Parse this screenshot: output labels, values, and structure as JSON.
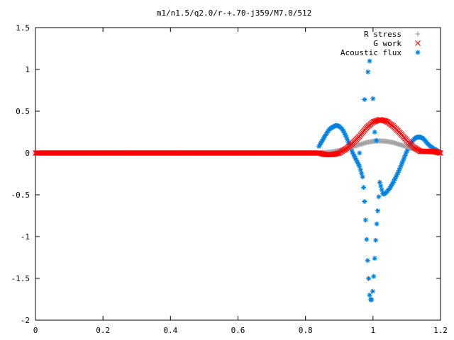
{
  "chart_data": {
    "type": "scatter",
    "title": "m1/n1.5/q2.0/r-+.70-j359/M7.0/512",
    "xlim": [
      0,
      1.2
    ],
    "ylim": [
      -2,
      1.5
    ],
    "x_ticks": [
      0,
      0.2,
      0.4,
      0.6,
      0.8,
      1,
      1.2
    ],
    "x_tick_labels": [
      "0",
      "0.2",
      "0.4",
      "0.6",
      "0.8",
      "1",
      "1.2"
    ],
    "y_ticks": [
      1.5,
      1,
      0.5,
      0,
      -0.5,
      -1,
      -1.5,
      -2
    ],
    "y_tick_labels": [
      "1.5",
      "1",
      "0.5",
      "0",
      "-0.5",
      "-1",
      "-1.5",
      "-2"
    ],
    "legend_position": "top-right",
    "series": [
      {
        "name": "R stress",
        "marker": "+",
        "color": "#a0a0a0",
        "x": [
          0.84,
          0.86,
          0.88,
          0.9,
          0.92,
          0.94,
          0.96,
          0.98,
          1.0,
          1.02,
          1.04,
          1.06,
          1.08,
          1.1,
          1.12,
          1.14,
          1.16,
          1.18,
          1.2
        ],
        "y": [
          0.0,
          0.005,
          0.015,
          0.03,
          0.05,
          0.075,
          0.1,
          0.125,
          0.14,
          0.145,
          0.14,
          0.125,
          0.1,
          0.075,
          0.05,
          0.03,
          0.015,
          0.005,
          0.0
        ]
      },
      {
        "name": "G work",
        "marker": "x",
        "color": "#ff0000",
        "x": [
          0.84,
          0.86,
          0.88,
          0.9,
          0.92,
          0.94,
          0.96,
          0.98,
          1.0,
          1.02,
          1.04,
          1.06,
          1.08,
          1.1,
          1.12,
          1.14,
          1.16,
          1.18,
          1.2
        ],
        "y": [
          0.0,
          -0.02,
          -0.02,
          0.0,
          0.05,
          0.12,
          0.2,
          0.3,
          0.37,
          0.4,
          0.38,
          0.32,
          0.24,
          0.15,
          0.07,
          0.02,
          0.02,
          0.02,
          0.0
        ]
      },
      {
        "name": "Acoustic flux",
        "marker": "*",
        "color": "#0080e0",
        "x": [
          0.84,
          0.85,
          0.86,
          0.87,
          0.88,
          0.89,
          0.9,
          0.91,
          0.92,
          0.93,
          0.94,
          0.95,
          0.96,
          0.97,
          0.975,
          0.98,
          0.985,
          0.99,
          0.995,
          1.0,
          1.005,
          1.01,
          1.015,
          1.02,
          1.03,
          1.04,
          1.05,
          1.06,
          1.07,
          1.08,
          1.09,
          1.1,
          1.11,
          1.12,
          1.13,
          1.14,
          1.15,
          1.16,
          1.17,
          1.18,
          1.19,
          1.2
        ],
        "y": [
          0.08,
          0.15,
          0.22,
          0.28,
          0.31,
          0.33,
          0.32,
          0.28,
          0.2,
          0.1,
          0.0,
          -0.08,
          -0.16,
          -0.3,
          -0.58,
          -0.95,
          -1.37,
          -1.7,
          -1.79,
          -1.62,
          -1.26,
          -0.9,
          -0.64,
          -0.35,
          -0.5,
          -0.47,
          -0.42,
          -0.35,
          -0.27,
          -0.18,
          -0.08,
          0.02,
          0.1,
          0.16,
          0.19,
          0.19,
          0.17,
          0.12,
          0.08,
          0.05,
          0.03,
          0.0
        ]
      }
    ],
    "extra_flux_points": {
      "x": [
        0.96,
        0.975,
        0.985,
        0.99,
        1.0,
        1.005,
        1.01
      ],
      "y": [
        0.0,
        0.64,
        0.97,
        1.1,
        0.65,
        0.25,
        0.15
      ]
    },
    "baseline_range": [
      0,
      0.84
    ]
  }
}
